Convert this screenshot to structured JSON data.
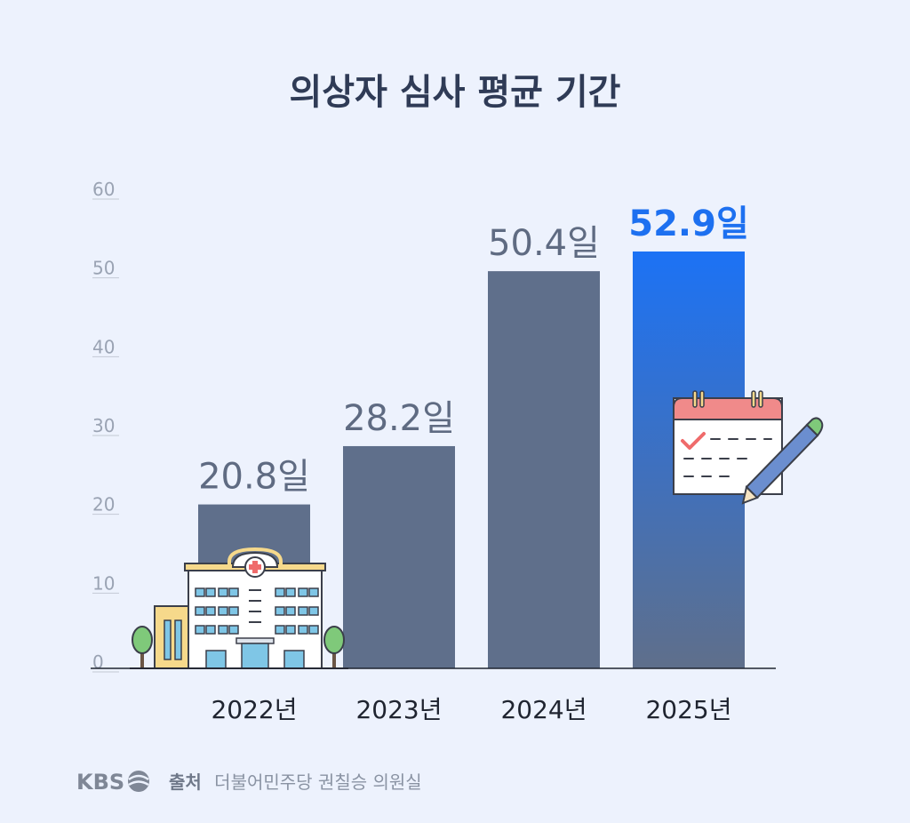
{
  "chart_data": {
    "type": "bar",
    "title": "의상자 심사 평균 기간",
    "categories": [
      "2022년",
      "2023년",
      "2024년",
      "2025년"
    ],
    "values": [
      20.8,
      28.2,
      50.4,
      52.9
    ],
    "data_labels": [
      "20.8일",
      "28.2일",
      "50.4일",
      "52.9일"
    ],
    "unit": "일",
    "ylim": [
      0,
      60
    ],
    "yticks": [
      "0",
      "10",
      "20",
      "30",
      "40",
      "50",
      "60"
    ],
    "highlight_index": 3,
    "grid": false,
    "colors": {
      "bar": "#5f6f8b",
      "highlight_top": "#1c72f5",
      "highlight_bottom": "#5f6f8b",
      "highlight_label": "#1d70f0"
    }
  },
  "footer": {
    "logo": "KBS",
    "source_label": "출처",
    "source_text": "더불어민주당 권칠승 의원실"
  },
  "icons": [
    "hospital-icon",
    "tree-icon",
    "calendar-icon",
    "pen-icon",
    "kbs-logo-icon"
  ]
}
